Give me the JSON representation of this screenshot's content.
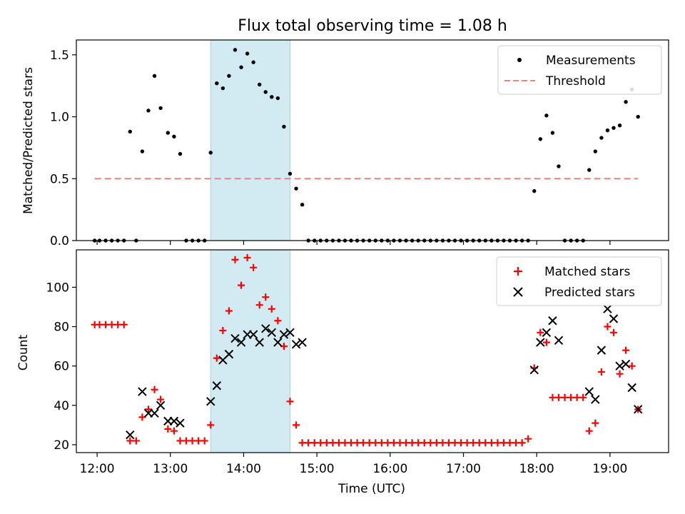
{
  "chart_data": [
    {
      "type": "scatter",
      "title": "Flux total observing time = 1.08 h",
      "xlabel": "",
      "ylabel": "Matched/Predicted stars",
      "xlim": [
        "11:43",
        "19:48"
      ],
      "ylim": [
        0,
        1.62
      ],
      "yticks": [
        0.0,
        0.5,
        1.0,
        1.5
      ],
      "yticklabels": [
        "0.0",
        "0.5",
        "1.0",
        "1.5"
      ],
      "legend": {
        "placement": "top-right",
        "entries": [
          "Measurements",
          "Threshold"
        ]
      },
      "shaded_region": {
        "x": [
          "13:33",
          "14:38"
        ],
        "color": "#add8e6"
      },
      "series": [
        {
          "name": "Measurements",
          "marker": "dot",
          "color": "#000000",
          "x": [
            "11:58",
            "12:02",
            "12:07",
            "12:12",
            "12:17",
            "12:22",
            "12:27",
            "12:32",
            "12:37",
            "12:42",
            "12:47",
            "12:52",
            "12:58",
            "13:03",
            "13:08",
            "13:13",
            "13:18",
            "13:23",
            "13:28",
            "13:33",
            "13:38",
            "13:43",
            "13:48",
            "13:53",
            "13:58",
            "14:03",
            "14:08",
            "14:13",
            "14:18",
            "14:23",
            "14:28",
            "14:33",
            "14:38",
            "14:43",
            "14:48",
            "14:53",
            "14:58",
            "15:03",
            "15:08",
            "15:13",
            "15:18",
            "15:23",
            "15:28",
            "15:33",
            "15:38",
            "15:43",
            "15:48",
            "15:53",
            "15:58",
            "16:03",
            "16:08",
            "16:13",
            "16:18",
            "16:23",
            "16:28",
            "16:33",
            "16:38",
            "16:43",
            "16:48",
            "16:53",
            "16:58",
            "17:03",
            "17:08",
            "17:13",
            "17:18",
            "17:23",
            "17:28",
            "17:33",
            "17:38",
            "17:43",
            "17:48",
            "17:53",
            "17:58",
            "18:03",
            "18:08",
            "18:13",
            "18:18",
            "18:23",
            "18:28",
            "18:33",
            "18:38",
            "18:43",
            "18:48",
            "18:53",
            "18:58",
            "19:03",
            "19:08",
            "19:13",
            "19:18",
            "19:23"
          ],
          "y": [
            0,
            0,
            0,
            0,
            0,
            0,
            0.88,
            0,
            0.72,
            1.05,
            1.33,
            1.07,
            0.87,
            0.84,
            0.7,
            0,
            0,
            0,
            0,
            0.71,
            1.27,
            1.23,
            1.33,
            1.54,
            1.4,
            1.51,
            1.44,
            1.26,
            1.2,
            1.16,
            1.15,
            0.92,
            0.54,
            0.42,
            0.29,
            0,
            0,
            0,
            0,
            0,
            0,
            0,
            0,
            0,
            0,
            0,
            0,
            0,
            0,
            0,
            0,
            0,
            0,
            0,
            0,
            0,
            0,
            0,
            0,
            0,
            0,
            0,
            0,
            0,
            0,
            0,
            0,
            0,
            0,
            0,
            0,
            0,
            0.4,
            0.82,
            1.01,
            0.87,
            0.6,
            0,
            0,
            0,
            0,
            0.57,
            0.72,
            0.83,
            0.89,
            0.91,
            0.93,
            1.12,
            1.22,
            1.0
          ]
        },
        {
          "name": "Threshold",
          "style": "dashed",
          "color": "#f08080",
          "x": [
            "11:58",
            "19:23"
          ],
          "y": [
            0.5,
            0.5
          ]
        }
      ]
    },
    {
      "type": "scatter",
      "title": "",
      "xlabel": "Time (UTC)",
      "ylabel": "Count",
      "xlim": [
        "11:43",
        "19:48"
      ],
      "ylim": [
        16,
        119
      ],
      "yticks": [
        20,
        40,
        60,
        80,
        100
      ],
      "yticklabels": [
        "20",
        "40",
        "60",
        "80",
        "100"
      ],
      "xticks": [
        "12:00",
        "13:00",
        "14:00",
        "15:00",
        "16:00",
        "17:00",
        "18:00",
        "19:00"
      ],
      "legend": {
        "placement": "top-right",
        "entries": [
          "Matched stars",
          "Predicted stars"
        ]
      },
      "shaded_region": {
        "x": [
          "13:33",
          "14:38"
        ],
        "color": "#add8e6"
      },
      "series": [
        {
          "name": "Matched stars",
          "marker": "plus",
          "color": "#ff0000",
          "x": [
            "11:58",
            "12:02",
            "12:07",
            "12:12",
            "12:17",
            "12:22",
            "12:27",
            "12:32",
            "12:37",
            "12:42",
            "12:47",
            "12:52",
            "12:58",
            "13:03",
            "13:08",
            "13:13",
            "13:18",
            "13:23",
            "13:28",
            "13:33",
            "13:38",
            "13:43",
            "13:48",
            "13:53",
            "13:58",
            "14:03",
            "14:08",
            "14:13",
            "14:18",
            "14:23",
            "14:28",
            "14:33",
            "14:38",
            "14:43",
            "14:48",
            "14:53",
            "14:58",
            "15:03",
            "15:08",
            "15:13",
            "15:18",
            "15:23",
            "15:28",
            "15:33",
            "15:38",
            "15:43",
            "15:48",
            "15:53",
            "15:58",
            "16:03",
            "16:08",
            "16:13",
            "16:18",
            "16:23",
            "16:28",
            "16:33",
            "16:38",
            "16:43",
            "16:48",
            "16:53",
            "16:58",
            "17:03",
            "17:08",
            "17:13",
            "17:18",
            "17:23",
            "17:28",
            "17:33",
            "17:38",
            "17:43",
            "17:48",
            "17:53",
            "17:58",
            "18:03",
            "18:08",
            "18:13",
            "18:18",
            "18:23",
            "18:28",
            "18:33",
            "18:38",
            "18:43",
            "18:48",
            "18:53",
            "18:58",
            "19:03",
            "19:08",
            "19:13",
            "19:18",
            "19:23"
          ],
          "y": [
            81,
            81,
            81,
            81,
            81,
            81,
            22,
            22,
            34,
            38,
            48,
            43,
            28,
            27,
            22,
            22,
            22,
            22,
            22,
            30,
            64,
            78,
            88,
            114,
            101,
            115,
            110,
            91,
            95,
            89,
            83,
            70,
            42,
            30,
            21,
            21,
            21,
            21,
            21,
            21,
            21,
            21,
            21,
            21,
            21,
            21,
            21,
            21,
            21,
            21,
            21,
            21,
            21,
            21,
            21,
            21,
            21,
            21,
            21,
            21,
            21,
            21,
            21,
            21,
            21,
            21,
            21,
            21,
            21,
            21,
            21,
            23,
            59,
            77,
            72,
            44,
            44,
            44,
            44,
            44,
            44,
            27,
            31,
            57,
            80,
            77,
            56,
            68,
            60,
            38
          ]
        },
        {
          "name": "Predicted stars",
          "marker": "x",
          "color": "#000000",
          "x": [
            "12:27",
            "12:37",
            "12:42",
            "12:47",
            "12:52",
            "12:58",
            "13:03",
            "13:08",
            "13:33",
            "13:38",
            "13:43",
            "13:48",
            "13:53",
            "13:58",
            "14:03",
            "14:08",
            "14:13",
            "14:18",
            "14:23",
            "14:28",
            "14:33",
            "14:38",
            "14:43",
            "14:48",
            "17:58",
            "18:03",
            "18:08",
            "18:13",
            "18:18",
            "18:43",
            "18:48",
            "18:53",
            "18:58",
            "19:03",
            "19:08",
            "19:13",
            "19:18",
            "19:23"
          ],
          "y": [
            25,
            47,
            36,
            36,
            40,
            32,
            32,
            31,
            42,
            50,
            63,
            66,
            74,
            72,
            76,
            76,
            72,
            79,
            77,
            72,
            76,
            77,
            71,
            72,
            58,
            72,
            77,
            83,
            73,
            47,
            43,
            68,
            89,
            84,
            60,
            61,
            49,
            38
          ]
        }
      ]
    }
  ]
}
